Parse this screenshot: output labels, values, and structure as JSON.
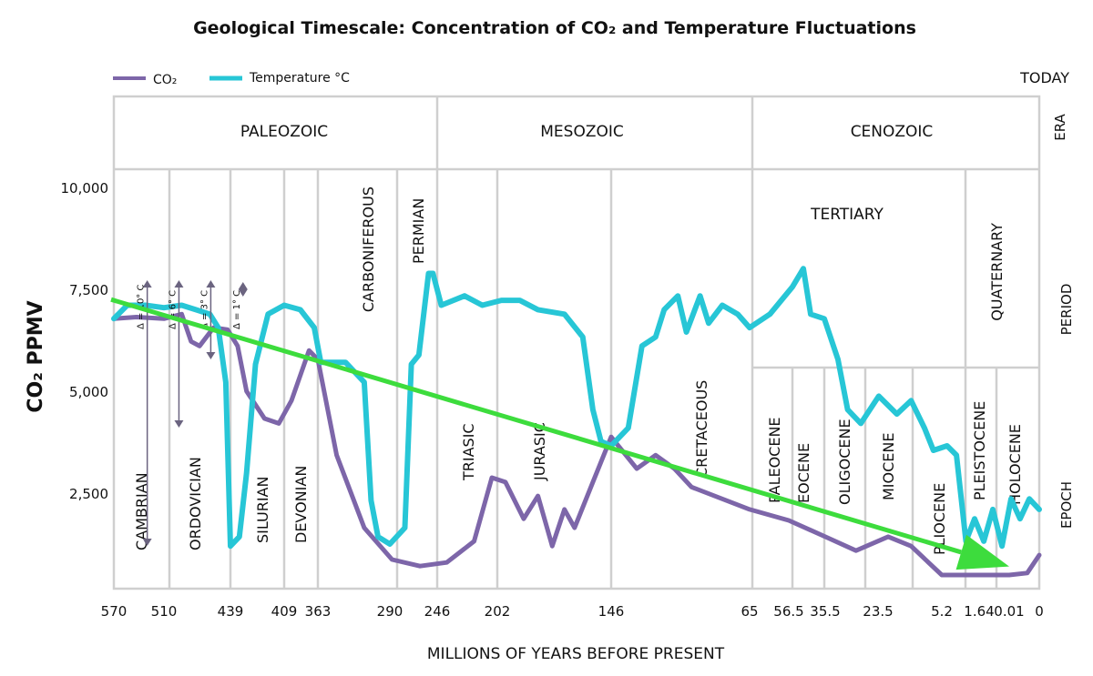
{
  "chart_data": {
    "type": "line",
    "title": "Geological Timescale: Concentration of CO₂ and Temperature Fluctuations",
    "xlabel": "MILLIONS OF YEARS BEFORE PRESENT",
    "ylabel": "CO₂ PPMV",
    "x_ticks": [
      "570",
      "510",
      "439",
      "409",
      "363",
      "290",
      "246",
      "202",
      "146",
      "65",
      "56.5",
      "35.5",
      "23.5",
      "5.2",
      "1.64",
      "0.01",
      "0"
    ],
    "x_tick_values": [
      570,
      510,
      439,
      409,
      363,
      290,
      246,
      202,
      146,
      65,
      56.5,
      35.5,
      23.5,
      5.2,
      1.64,
      0.01,
      0
    ],
    "x_scale": "non-uniform (ticks at geological boundaries)",
    "y_ticks": [
      "10,000",
      "7,500",
      "5,000",
      "2,500"
    ],
    "y_tick_values": [
      10000,
      7500,
      5000,
      2500
    ],
    "ylim": [
      0,
      10500
    ],
    "xlim": [
      570,
      0
    ],
    "right_label": "TODAY",
    "legend": {
      "placement": "top-left",
      "entries": [
        {
          "label": "CO₂",
          "color": "#7d66a9"
        },
        {
          "label": "Temperature °C",
          "color": "#27c6d6"
        }
      ]
    },
    "series": [
      {
        "name": "CO₂",
        "color": "#7d66a9",
        "x": [
          570,
          543,
          510,
          491,
          481,
          472,
          457,
          442,
          435,
          430,
          420,
          412,
          399,
          375,
          363,
          344,
          316,
          288,
          262,
          239,
          219,
          206,
          198,
          189,
          182,
          175,
          169,
          164,
          155,
          146,
          131,
          120,
          109,
          99,
          65,
          56.5,
          35.5,
          28.5,
          20.6,
          14,
          5.2,
          1.64,
          0.01,
          0.004,
          0
        ],
        "y": [
          6780,
          6820,
          6780,
          6890,
          6220,
          6110,
          6560,
          6510,
          6110,
          5000,
          4330,
          4210,
          4770,
          6000,
          5780,
          3430,
          1650,
          870,
          710,
          800,
          1320,
          2880,
          2770,
          1870,
          2430,
          1200,
          2100,
          1650,
          2770,
          3880,
          3100,
          3430,
          3100,
          2650,
          2100,
          1830,
          1430,
          1090,
          1430,
          1200,
          490,
          490,
          490,
          540,
          980
        ]
      },
      {
        "name": "Temperature °C",
        "color": "#27c6d6",
        "x": [
          570,
          554,
          532,
          510,
          491,
          476,
          461,
          452,
          444,
          439,
          434,
          430,
          425,
          418,
          409,
          387,
          368,
          360,
          335,
          316,
          309,
          302,
          290,
          276,
          270,
          263,
          254,
          250,
          243,
          226,
          213,
          200,
          191,
          182,
          169,
          160,
          155,
          151,
          146,
          136,
          128,
          120,
          115,
          107,
          102,
          94,
          89,
          81,
          72,
          65,
          60.6,
          54.4,
          48.1,
          43.9,
          36,
          32.6,
          30.4,
          27.4,
          23.3,
          18.1,
          14,
          10.2,
          7.6,
          4.7,
          3.8,
          2.9,
          2.07,
          1.39,
          0.9,
          0.4,
          0.0094,
          0.0064,
          0.0033,
          0
        ],
        "y": [
          6780,
          7110,
          7110,
          7050,
          7110,
          7000,
          6890,
          6560,
          5220,
          1200,
          1430,
          2990,
          5660,
          6890,
          7110,
          7000,
          6560,
          5710,
          5710,
          5220,
          2320,
          1430,
          1250,
          1650,
          5660,
          5890,
          7890,
          7890,
          7110,
          7340,
          7110,
          7230,
          7230,
          7000,
          6890,
          6330,
          4550,
          3770,
          3660,
          4100,
          6110,
          6330,
          7000,
          7340,
          6450,
          7340,
          6670,
          7110,
          6890,
          6560,
          6890,
          7560,
          8010,
          6890,
          6780,
          5780,
          4550,
          4210,
          4880,
          4440,
          4770,
          4100,
          3550,
          3660,
          3430,
          1320,
          1870,
          1320,
          2100,
          1200,
          2360,
          1870,
          2360,
          2100
        ]
      }
    ],
    "trend_arrow": {
      "color": "#3ddc3d",
      "from": {
        "x": 570,
        "y": 7250
      },
      "to": {
        "x": 0.01,
        "y": 700
      }
    },
    "temperature_ranges": [
      {
        "label": "Δ = 10° C",
        "x": 530
      },
      {
        "label": "Δ = 6° C",
        "x": 494
      },
      {
        "label": "Δ = 3° C",
        "x": 460
      },
      {
        "label": "Δ = 1° C",
        "x": 432
      }
    ],
    "bands": {
      "era_label": "ERA",
      "period_label": "PERIOD",
      "epoch_label": "EPOCH",
      "eras": [
        "PALEOZOIC",
        "MESOZOIC",
        "CENOZOIC"
      ],
      "periods": [
        "CAMBRIAN",
        "ORDOVICIAN",
        "SILURIAN",
        "DEVONIAN",
        "CARBONIFEROUS",
        "PERMIAN",
        "TRIASIC",
        "JURASIC",
        "CRETACEOUS",
        "TERTIARY",
        "QUATERNARY"
      ],
      "epochs": [
        "PALEOCENE",
        "EOCENE",
        "OLIGOCENE",
        "MIOCENE",
        "PLIOCENE",
        "PLEISTOCENE",
        "HOLOCENE"
      ]
    },
    "grid": true
  }
}
